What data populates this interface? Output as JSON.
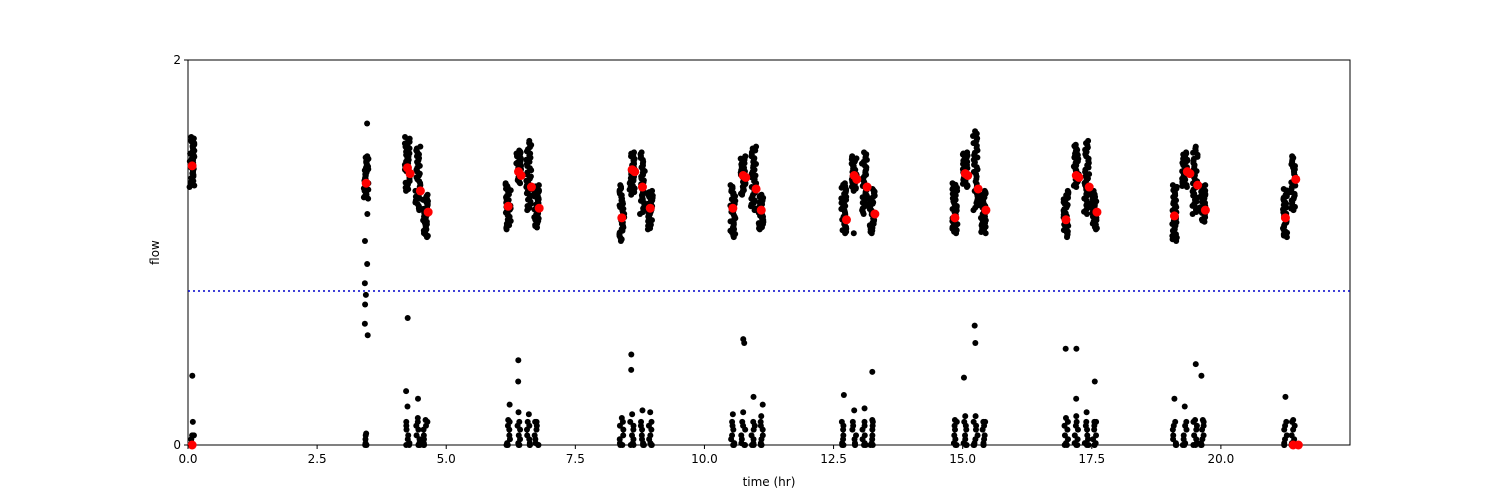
{
  "chart_data": {
    "type": "scatter",
    "title": "",
    "xlabel": "time (hr)",
    "ylabel": "flow",
    "xlim": [
      0,
      22.5
    ],
    "ylim": [
      0,
      2
    ],
    "xticks": [
      0.0,
      2.5,
      5.0,
      7.5,
      10.0,
      12.5,
      15.0,
      17.5,
      20.0
    ],
    "xtick_labels": [
      "0.0",
      "2.5",
      "5.0",
      "7.5",
      "10.0",
      "12.5",
      "15.0",
      "17.5",
      "20.0"
    ],
    "yticks": [
      0,
      2
    ],
    "ytick_labels": [
      "0",
      "2"
    ],
    "grid": false,
    "legend": "none",
    "threshold": {
      "y": 0.8,
      "style": "dotted",
      "color": "#0000cc"
    },
    "colors": {
      "raw_points": "#000000",
      "mean_points": "#ff0000",
      "threshold_line": "#0000cc"
    },
    "clusters": [
      {
        "t": 0.08,
        "ymin": 1.34,
        "ymax": 1.6,
        "low_max": 0.05,
        "extra": [
          0.36,
          0.12
        ]
      },
      {
        "t": 3.45,
        "ymin": 1.28,
        "ymax": 1.5,
        "low_max": 0.06,
        "extra": [
          1.67,
          1.2,
          1.06,
          0.94,
          0.84,
          0.78,
          0.73,
          0.63,
          0.57
        ]
      },
      {
        "t": 4.25,
        "ymin": 1.32,
        "ymax": 1.6,
        "low_max": 0.2,
        "extra": [
          0.66,
          0.28
        ]
      },
      {
        "t": 4.45,
        "ymin": 1.22,
        "ymax": 1.55,
        "low_max": 0.14,
        "extra": [
          0.24
        ]
      },
      {
        "t": 4.6,
        "ymin": 1.08,
        "ymax": 1.3,
        "low_max": 0.13,
        "extra": []
      },
      {
        "t": 6.2,
        "ymin": 1.12,
        "ymax": 1.36,
        "low_max": 0.13,
        "extra": [
          0.21
        ]
      },
      {
        "t": 6.4,
        "ymin": 1.36,
        "ymax": 1.53,
        "low_max": 0.17,
        "extra": [
          0.44,
          0.33
        ]
      },
      {
        "t": 6.6,
        "ymin": 1.22,
        "ymax": 1.58,
        "low_max": 0.16,
        "extra": []
      },
      {
        "t": 6.75,
        "ymin": 1.13,
        "ymax": 1.35,
        "low_max": 0.12,
        "extra": []
      },
      {
        "t": 8.4,
        "ymin": 1.06,
        "ymax": 1.35,
        "low_max": 0.14,
        "extra": []
      },
      {
        "t": 8.6,
        "ymin": 1.3,
        "ymax": 1.52,
        "low_max": 0.16,
        "extra": [
          0.47,
          0.39
        ]
      },
      {
        "t": 8.8,
        "ymin": 1.2,
        "ymax": 1.52,
        "low_max": 0.18,
        "extra": []
      },
      {
        "t": 8.95,
        "ymin": 1.12,
        "ymax": 1.32,
        "low_max": 0.17,
        "extra": []
      },
      {
        "t": 10.55,
        "ymin": 1.08,
        "ymax": 1.35,
        "low_max": 0.16,
        "extra": []
      },
      {
        "t": 10.75,
        "ymin": 1.3,
        "ymax": 1.5,
        "low_max": 0.17,
        "extra": [
          0.55,
          0.53
        ]
      },
      {
        "t": 10.95,
        "ymin": 1.22,
        "ymax": 1.55,
        "low_max": 0.25,
        "extra": []
      },
      {
        "t": 11.1,
        "ymin": 1.12,
        "ymax": 1.3,
        "low_max": 0.15,
        "extra": [
          0.21
        ]
      },
      {
        "t": 12.7,
        "ymin": 1.1,
        "ymax": 1.36,
        "low_max": 0.26,
        "extra": []
      },
      {
        "t": 12.9,
        "ymin": 1.32,
        "ymax": 1.5,
        "low_max": 0.18,
        "extra": [
          1.1
        ]
      },
      {
        "t": 13.1,
        "ymin": 1.2,
        "ymax": 1.52,
        "low_max": 0.19,
        "extra": []
      },
      {
        "t": 13.25,
        "ymin": 1.1,
        "ymax": 1.33,
        "low_max": 0.13,
        "extra": [
          0.38
        ]
      },
      {
        "t": 14.85,
        "ymin": 1.1,
        "ymax": 1.36,
        "low_max": 0.13,
        "extra": []
      },
      {
        "t": 15.05,
        "ymin": 1.34,
        "ymax": 1.52,
        "low_max": 0.15,
        "extra": [
          0.35
        ]
      },
      {
        "t": 15.25,
        "ymin": 1.22,
        "ymax": 1.63,
        "low_max": 0.15,
        "extra": [
          0.53,
          0.62
        ]
      },
      {
        "t": 15.4,
        "ymin": 1.1,
        "ymax": 1.32,
        "low_max": 0.12,
        "extra": []
      },
      {
        "t": 17.0,
        "ymin": 1.08,
        "ymax": 1.32,
        "low_max": 0.14,
        "extra": [
          0.5
        ]
      },
      {
        "t": 17.2,
        "ymin": 1.34,
        "ymax": 1.56,
        "low_max": 0.15,
        "extra": [
          0.5,
          0.24
        ]
      },
      {
        "t": 17.4,
        "ymin": 1.2,
        "ymax": 1.58,
        "low_max": 0.17,
        "extra": []
      },
      {
        "t": 17.55,
        "ymin": 1.12,
        "ymax": 1.32,
        "low_max": 0.12,
        "extra": [
          0.33
        ]
      },
      {
        "t": 19.1,
        "ymin": 1.06,
        "ymax": 1.35,
        "low_max": 0.24,
        "extra": []
      },
      {
        "t": 19.3,
        "ymin": 1.34,
        "ymax": 1.52,
        "low_max": 0.2,
        "extra": []
      },
      {
        "t": 19.5,
        "ymin": 1.2,
        "ymax": 1.55,
        "low_max": 0.13,
        "extra": [
          0.42
        ]
      },
      {
        "t": 19.65,
        "ymin": 1.16,
        "ymax": 1.35,
        "low_max": 0.13,
        "extra": [
          0.36
        ]
      },
      {
        "t": 21.25,
        "ymin": 1.08,
        "ymax": 1.33,
        "low_max": 0.25,
        "extra": []
      },
      {
        "t": 21.4,
        "ymin": 1.22,
        "ymax": 1.5,
        "low_max": 0.13,
        "extra": []
      }
    ],
    "means": [
      {
        "x": 0.08,
        "y": 1.45
      },
      {
        "x": 0.08,
        "y": 0.0
      },
      {
        "x": 3.45,
        "y": 1.36
      },
      {
        "x": 4.25,
        "y": 1.44
      },
      {
        "x": 4.3,
        "y": 1.41
      },
      {
        "x": 4.5,
        "y": 1.32
      },
      {
        "x": 4.65,
        "y": 1.21
      },
      {
        "x": 6.2,
        "y": 1.24
      },
      {
        "x": 6.4,
        "y": 1.42
      },
      {
        "x": 6.45,
        "y": 1.4
      },
      {
        "x": 6.65,
        "y": 1.34
      },
      {
        "x": 6.8,
        "y": 1.23
      },
      {
        "x": 8.4,
        "y": 1.18
      },
      {
        "x": 8.6,
        "y": 1.43
      },
      {
        "x": 8.65,
        "y": 1.42
      },
      {
        "x": 8.8,
        "y": 1.34
      },
      {
        "x": 8.95,
        "y": 1.23
      },
      {
        "x": 10.55,
        "y": 1.23
      },
      {
        "x": 10.75,
        "y": 1.4
      },
      {
        "x": 10.8,
        "y": 1.39
      },
      {
        "x": 11.0,
        "y": 1.33
      },
      {
        "x": 11.1,
        "y": 1.22
      },
      {
        "x": 12.75,
        "y": 1.17
      },
      {
        "x": 12.9,
        "y": 1.4
      },
      {
        "x": 12.95,
        "y": 1.38
      },
      {
        "x": 13.15,
        "y": 1.34
      },
      {
        "x": 13.3,
        "y": 1.2
      },
      {
        "x": 14.85,
        "y": 1.18
      },
      {
        "x": 15.05,
        "y": 1.41
      },
      {
        "x": 15.1,
        "y": 1.4
      },
      {
        "x": 15.3,
        "y": 1.33
      },
      {
        "x": 15.45,
        "y": 1.22
      },
      {
        "x": 17.0,
        "y": 1.17
      },
      {
        "x": 17.2,
        "y": 1.4
      },
      {
        "x": 17.25,
        "y": 1.39
      },
      {
        "x": 17.45,
        "y": 1.34
      },
      {
        "x": 17.6,
        "y": 1.21
      },
      {
        "x": 19.1,
        "y": 1.19
      },
      {
        "x": 19.35,
        "y": 1.42
      },
      {
        "x": 19.4,
        "y": 1.41
      },
      {
        "x": 19.55,
        "y": 1.35
      },
      {
        "x": 19.7,
        "y": 1.22
      },
      {
        "x": 21.25,
        "y": 1.18
      },
      {
        "x": 21.45,
        "y": 1.38
      },
      {
        "x": 21.4,
        "y": 0.0
      },
      {
        "x": 21.5,
        "y": 0.0
      }
    ]
  }
}
